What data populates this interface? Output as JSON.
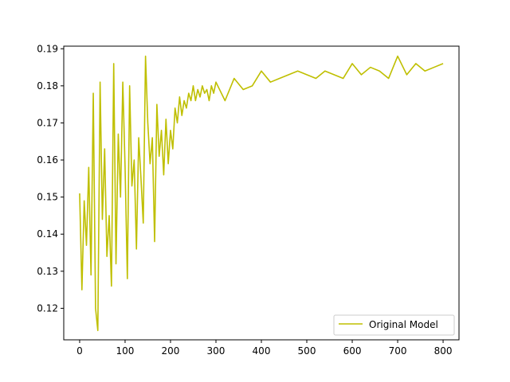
{
  "chart_data": {
    "type": "line",
    "title": "",
    "xlabel": "",
    "ylabel": "",
    "xlim": [
      -35,
      835
    ],
    "ylim": [
      0.1115,
      0.1907
    ],
    "x_ticks": [
      0,
      100,
      200,
      300,
      400,
      500,
      600,
      700,
      800
    ],
    "y_ticks": [
      0.12,
      0.13,
      0.14,
      0.15,
      0.16,
      0.17,
      0.18,
      0.19
    ],
    "x_tick_labels": [
      "0",
      "100",
      "200",
      "300",
      "400",
      "500",
      "600",
      "700",
      "800"
    ],
    "y_tick_labels": [
      "0.12",
      "0.13",
      "0.14",
      "0.15",
      "0.16",
      "0.17",
      "0.18",
      "0.19"
    ],
    "grid": false,
    "legend_position": "lower-right",
    "series": [
      {
        "name": "Original Model",
        "color": "#bfbf00",
        "x": [
          0,
          5,
          10,
          15,
          20,
          25,
          30,
          35,
          40,
          45,
          50,
          55,
          60,
          65,
          70,
          75,
          80,
          85,
          90,
          95,
          100,
          105,
          110,
          115,
          120,
          125,
          130,
          135,
          140,
          145,
          150,
          155,
          160,
          165,
          170,
          175,
          180,
          185,
          190,
          195,
          200,
          205,
          210,
          215,
          220,
          225,
          230,
          235,
          240,
          245,
          250,
          255,
          260,
          265,
          270,
          275,
          280,
          285,
          290,
          295,
          300,
          320,
          340,
          360,
          380,
          400,
          420,
          440,
          460,
          480,
          500,
          520,
          540,
          560,
          580,
          600,
          620,
          640,
          660,
          680,
          700,
          720,
          740,
          760,
          780,
          800
        ],
        "y": [
          0.151,
          0.125,
          0.149,
          0.137,
          0.158,
          0.129,
          0.178,
          0.12,
          0.114,
          0.181,
          0.144,
          0.163,
          0.134,
          0.145,
          0.126,
          0.186,
          0.132,
          0.167,
          0.15,
          0.181,
          0.158,
          0.128,
          0.18,
          0.153,
          0.16,
          0.136,
          0.166,
          0.155,
          0.143,
          0.188,
          0.17,
          0.159,
          0.166,
          0.138,
          0.175,
          0.161,
          0.168,
          0.156,
          0.171,
          0.159,
          0.168,
          0.163,
          0.174,
          0.17,
          0.177,
          0.172,
          0.176,
          0.174,
          0.178,
          0.176,
          0.18,
          0.176,
          0.179,
          0.177,
          0.18,
          0.178,
          0.179,
          0.176,
          0.18,
          0.178,
          0.181,
          0.176,
          0.182,
          0.179,
          0.18,
          0.184,
          0.181,
          0.182,
          0.183,
          0.184,
          0.183,
          0.182,
          0.184,
          0.183,
          0.182,
          0.186,
          0.183,
          0.185,
          0.184,
          0.182,
          0.188,
          0.183,
          0.186,
          0.184,
          0.185,
          0.186
        ]
      }
    ]
  }
}
